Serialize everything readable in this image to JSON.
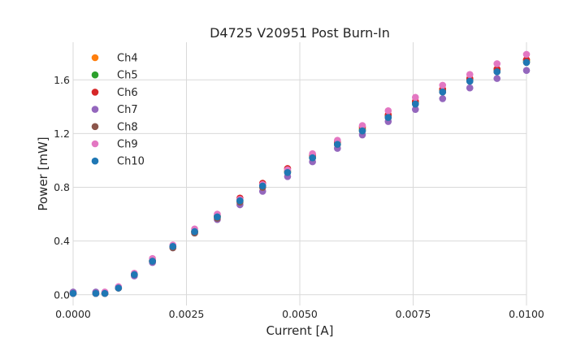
{
  "chart_data": {
    "type": "scatter",
    "title": "D4725 V20951 Post Burn-In",
    "xlabel": "Current [A]",
    "ylabel": "Power [mW]",
    "xlim": [
      0.0,
      0.01
    ],
    "ylim": [
      -0.08,
      1.88
    ],
    "xticks": [
      0.0,
      0.0025,
      0.005,
      0.0075,
      0.01
    ],
    "xtick_labels": [
      "0.0000",
      "0.0025",
      "0.0050",
      "0.0075",
      "0.0100"
    ],
    "yticks": [
      0.0,
      0.4,
      0.8,
      1.2,
      1.6
    ],
    "ytick_labels": [
      "0.0",
      "0.4",
      "0.8",
      "1.2",
      "1.6"
    ],
    "grid": true,
    "legend": "top-left",
    "x": [
      0.0,
      0.0005,
      0.0007,
      0.001,
      0.00135,
      0.00175,
      0.0022,
      0.00268,
      0.00318,
      0.00368,
      0.00418,
      0.00473,
      0.00528,
      0.00583,
      0.00638,
      0.00695,
      0.00755,
      0.00815,
      0.00875,
      0.00935,
      0.01
    ],
    "series": [
      {
        "name": "Ch4",
        "color": "#ff7f0e",
        "values": [
          0.01,
          0.01,
          0.01,
          0.05,
          0.15,
          0.25,
          0.36,
          0.47,
          0.58,
          0.7,
          0.81,
          0.92,
          1.03,
          1.13,
          1.24,
          1.34,
          1.44,
          1.53,
          1.61,
          1.68,
          1.75
        ]
      },
      {
        "name": "Ch5",
        "color": "#2ca02c",
        "values": [
          0.01,
          0.01,
          0.01,
          0.05,
          0.15,
          0.25,
          0.36,
          0.47,
          0.58,
          0.7,
          0.81,
          0.92,
          1.02,
          1.12,
          1.23,
          1.33,
          1.43,
          1.52,
          1.6,
          1.67,
          1.74
        ]
      },
      {
        "name": "Ch6",
        "color": "#d62728",
        "values": [
          0.01,
          0.01,
          0.01,
          0.05,
          0.15,
          0.25,
          0.36,
          0.47,
          0.59,
          0.72,
          0.83,
          0.94,
          1.04,
          1.14,
          1.25,
          1.34,
          1.44,
          1.53,
          1.61,
          1.68,
          1.75
        ]
      },
      {
        "name": "Ch7",
        "color": "#9467bd",
        "values": [
          0.02,
          0.02,
          0.01,
          0.05,
          0.14,
          0.24,
          0.35,
          0.46,
          0.56,
          0.67,
          0.77,
          0.88,
          0.99,
          1.09,
          1.19,
          1.29,
          1.38,
          1.46,
          1.54,
          1.61,
          1.67
        ]
      },
      {
        "name": "Ch8",
        "color": "#8c564b",
        "values": [
          0.01,
          0.01,
          0.01,
          0.05,
          0.15,
          0.25,
          0.35,
          0.46,
          0.57,
          0.69,
          0.8,
          0.91,
          1.02,
          1.12,
          1.22,
          1.32,
          1.42,
          1.51,
          1.59,
          1.66,
          1.73
        ]
      },
      {
        "name": "Ch9",
        "color": "#e377c2",
        "values": [
          0.01,
          0.01,
          0.02,
          0.06,
          0.16,
          0.27,
          0.37,
          0.49,
          0.6,
          0.71,
          0.82,
          0.93,
          1.05,
          1.15,
          1.26,
          1.37,
          1.47,
          1.56,
          1.64,
          1.72,
          1.79
        ]
      },
      {
        "name": "Ch10",
        "color": "#1f77b4",
        "values": [
          0.01,
          0.01,
          0.01,
          0.05,
          0.15,
          0.25,
          0.36,
          0.47,
          0.58,
          0.7,
          0.81,
          0.91,
          1.02,
          1.12,
          1.22,
          1.32,
          1.42,
          1.51,
          1.59,
          1.66,
          1.73
        ]
      }
    ]
  }
}
